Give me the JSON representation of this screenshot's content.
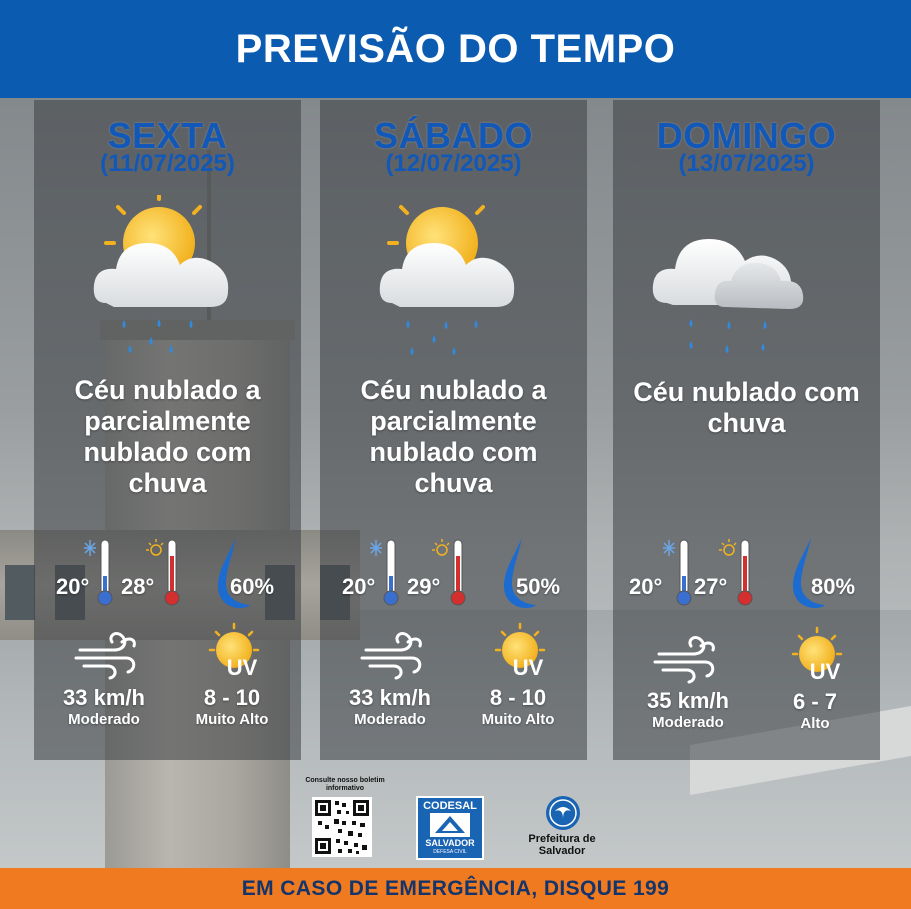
{
  "header": {
    "title": "PREVISÃO DO TEMPO"
  },
  "days": [
    {
      "name": "SEXTA",
      "date": "(11/07/2025)",
      "icon": "sun-cloud-rain-icon",
      "description_lines": [
        "Céu nublado a",
        "parcialmente",
        "nublado com",
        "chuva"
      ],
      "temp_min": "20°",
      "temp_max": "28°",
      "humidity": "60%",
      "wind_speed": "33 km/h",
      "wind_label": "Moderado",
      "uv_letters": "UV",
      "uv_index": "8 - 10",
      "uv_label": "Muito Alto"
    },
    {
      "name": "SÁBADO",
      "date": "(12/07/2025)",
      "icon": "sun-cloud-rain-icon",
      "description_lines": [
        "Céu nublado a",
        "parcialmente",
        "nublado com",
        "chuva"
      ],
      "temp_min": "20°",
      "temp_max": "29°",
      "humidity": "50%",
      "wind_speed": "33 km/h",
      "wind_label": "Moderado",
      "uv_letters": "UV",
      "uv_index": "8 - 10",
      "uv_label": "Muito Alto"
    },
    {
      "name": "DOMINGO",
      "date": "(13/07/2025)",
      "icon": "cloud-rain-icon",
      "description_lines": [
        "Céu nublado com",
        "chuva"
      ],
      "temp_min": "20°",
      "temp_max": "27°",
      "humidity": "80%",
      "wind_speed": "35 km/h",
      "wind_label": "Moderado",
      "uv_letters": "UV",
      "uv_index": "6 - 7",
      "uv_label": "Alto"
    }
  ],
  "logos": {
    "qr_caption": "Consulte nosso boletim informativo",
    "codesal_top": "CODESAL",
    "codesal_mid": "SALVADOR",
    "codesal_bottom": "DEFESA CIVIL",
    "prefeitura": "Prefeitura de Salvador"
  },
  "footer": {
    "text": "EM CASO DE EMERGÊNCIA, DISQUE 199"
  },
  "colors": {
    "header_bg": "#0b5bb0",
    "day_title": "#1158b8",
    "footer_bg": "#f07a20",
    "footer_text": "#14356b",
    "thermo_cold": "#3a6fd0",
    "thermo_hot": "#d32f2f",
    "drop": "#1b6bd0",
    "sun": "#f7c331"
  }
}
